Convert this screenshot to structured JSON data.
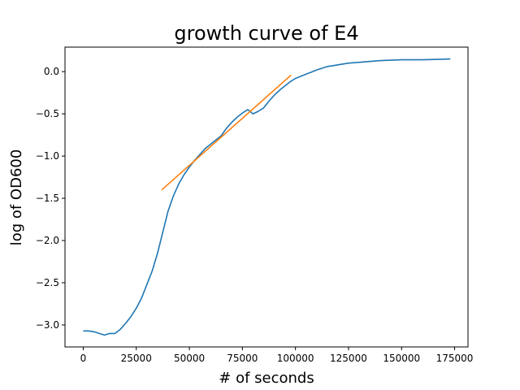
{
  "chart_data": {
    "type": "line",
    "title": "growth curve of E4",
    "xlabel": "# of seconds",
    "ylabel": "log of OD600",
    "xlim": [
      -8600,
      181300
    ],
    "ylim": [
      -3.26,
      0.29
    ],
    "x_ticks": [
      0,
      25000,
      50000,
      75000,
      100000,
      125000,
      150000,
      175000
    ],
    "x_tick_labels": [
      "0",
      "25000",
      "50000",
      "75000",
      "100000",
      "125000",
      "150000",
      "175000"
    ],
    "y_ticks": [
      0.0,
      -0.5,
      -1.0,
      -1.5,
      -2.0,
      -2.5,
      -3.0
    ],
    "y_tick_labels": [
      "0.0",
      "−0.5",
      "−1.0",
      "−1.5",
      "−2.0",
      "−2.5",
      "−3.0"
    ],
    "grid": false,
    "legend": "none",
    "series": [
      {
        "color": "#1f77b4",
        "x": [
          0,
          2500,
          5000,
          7500,
          10000,
          12500,
          15000,
          17500,
          20000,
          22500,
          25000,
          27500,
          30000,
          32500,
          35000,
          37500,
          40000,
          42500,
          45000,
          47500,
          50000,
          52500,
          55000,
          57500,
          60000,
          62500,
          65000,
          67500,
          70000,
          72500,
          75000,
          77500,
          80000,
          82500,
          85000,
          87500,
          90000,
          92500,
          95000,
          97500,
          100000,
          105000,
          110000,
          115000,
          120000,
          125000,
          130000,
          140000,
          150000,
          160000,
          173000
        ],
        "y": [
          -3.07,
          -3.07,
          -3.08,
          -3.1,
          -3.12,
          -3.1,
          -3.1,
          -3.05,
          -2.98,
          -2.9,
          -2.8,
          -2.68,
          -2.52,
          -2.36,
          -2.15,
          -1.9,
          -1.65,
          -1.47,
          -1.33,
          -1.22,
          -1.13,
          -1.05,
          -0.98,
          -0.91,
          -0.86,
          -0.81,
          -0.76,
          -0.67,
          -0.6,
          -0.54,
          -0.49,
          -0.45,
          -0.5,
          -0.47,
          -0.43,
          -0.35,
          -0.28,
          -0.22,
          -0.17,
          -0.12,
          -0.08,
          -0.03,
          0.02,
          0.06,
          0.08,
          0.1,
          0.11,
          0.13,
          0.14,
          0.14,
          0.15
        ]
      },
      {
        "color": "#ff7f0e",
        "x": [
          37000,
          98000
        ],
        "y": [
          -1.4,
          -0.04
        ]
      }
    ]
  }
}
